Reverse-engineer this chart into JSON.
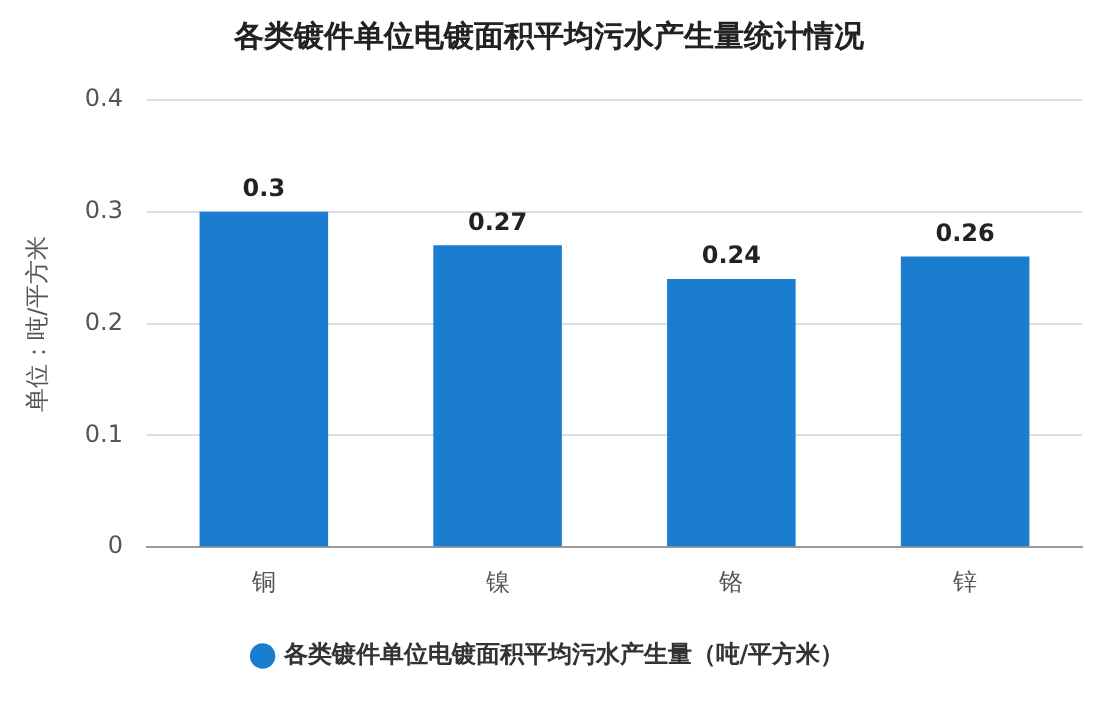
{
  "chart_data": {
    "type": "bar",
    "title": "各类镀件单位电镀面积平均污水产生量统计情况",
    "ylabel": "单位：吨/平方米",
    "categories": [
      "铜",
      "镍",
      "铬",
      "锌"
    ],
    "series": [
      {
        "name": "各类镀件单位电镀面积平均污水产生量（吨/平方米）",
        "color": "#1a7dd0",
        "values": [
          0.3,
          0.27,
          0.24,
          0.26
        ]
      }
    ],
    "ylim": [
      0,
      0.4
    ],
    "yticks": [
      0,
      0.1,
      0.2,
      0.3,
      0.4
    ],
    "grid": "y",
    "legend": "bottom",
    "data_labels": true
  }
}
